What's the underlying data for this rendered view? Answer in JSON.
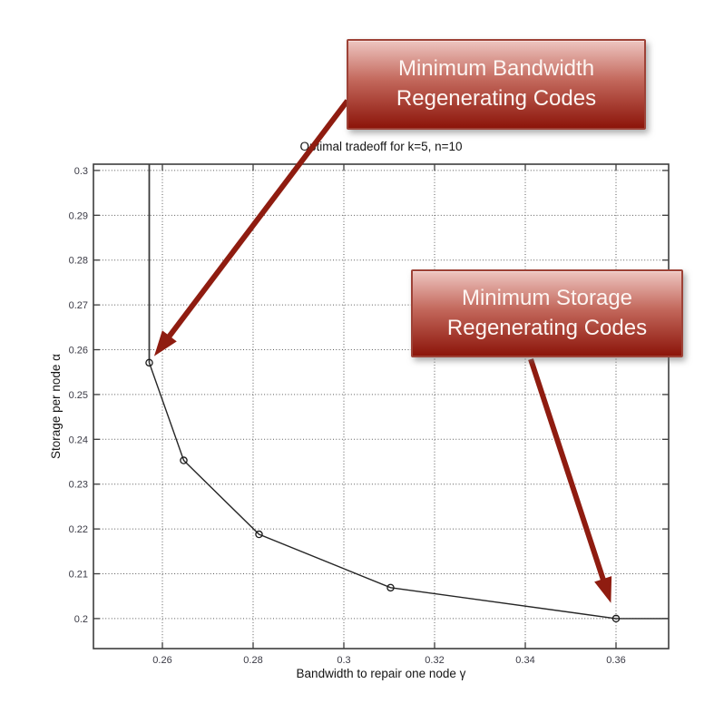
{
  "chart_data": {
    "type": "line",
    "title": "Optimal tradeoff for k=5, n=10",
    "xlabel": "Bandwidth to repair one node γ",
    "ylabel": "Storage per node α",
    "xlim": [
      0.2448,
      0.3716
    ],
    "ylim": [
      0.1933,
      0.3014
    ],
    "grid": "dotted",
    "legend": "none",
    "xticks": [
      {
        "v": 0.26,
        "label": "0.26"
      },
      {
        "v": 0.28,
        "label": "0.28"
      },
      {
        "v": 0.3,
        "label": "0.3"
      },
      {
        "v": 0.32,
        "label": "0.32"
      },
      {
        "v": 0.34,
        "label": "0.34"
      },
      {
        "v": 0.36,
        "label": "0.36"
      }
    ],
    "yticks": [
      {
        "v": 0.2,
        "label": "0.2"
      },
      {
        "v": 0.21,
        "label": "0.21"
      },
      {
        "v": 0.22,
        "label": "0.22"
      },
      {
        "v": 0.23,
        "label": "0.23"
      },
      {
        "v": 0.24,
        "label": "0.24"
      },
      {
        "v": 0.25,
        "label": "0.25"
      },
      {
        "v": 0.26,
        "label": "0.26"
      },
      {
        "v": 0.27,
        "label": "0.27"
      },
      {
        "v": 0.28,
        "label": "0.28"
      },
      {
        "v": 0.29,
        "label": "0.29"
      },
      {
        "v": 0.3,
        "label": "0.3"
      }
    ],
    "series": [
      {
        "name": "optimal-tradeoff-curve",
        "marker": "circle",
        "points": [
          [
            0.2571,
            0.2571
          ],
          [
            0.2647,
            0.2353
          ],
          [
            0.2813,
            0.2188
          ],
          [
            0.3103,
            0.2069
          ],
          [
            0.36,
            0.2
          ]
        ]
      }
    ],
    "extra_lines": [
      {
        "name": "mbr-vertical-line",
        "from": [
          0.2571,
          0.3014
        ],
        "to": [
          0.2571,
          0.2571
        ]
      },
      {
        "name": "msr-extension-line",
        "from": [
          0.36,
          0.2
        ],
        "to": [
          0.3716,
          0.2
        ]
      }
    ]
  },
  "annotations": [
    {
      "id": "mbr",
      "lines": [
        "Minimum Bandwidth",
        "Regenerating Codes"
      ],
      "target": [
        0.2571,
        0.2571
      ]
    },
    {
      "id": "msr",
      "lines": [
        "Minimum Storage",
        "Regenerating Codes"
      ],
      "target": [
        0.36,
        0.2
      ]
    }
  ],
  "colors": {
    "arrow": "#8f1c10",
    "curve": "#262626",
    "grid": "#5a5a5a",
    "axis": "#3d3d3d",
    "tick_text": "#3a3a45",
    "callout_border": "#9e4237",
    "callout_top": "#eec5c0",
    "callout_mid": "#c3685c",
    "callout_bottom": "#8c150a",
    "callout_text": "#fdf5f2"
  }
}
